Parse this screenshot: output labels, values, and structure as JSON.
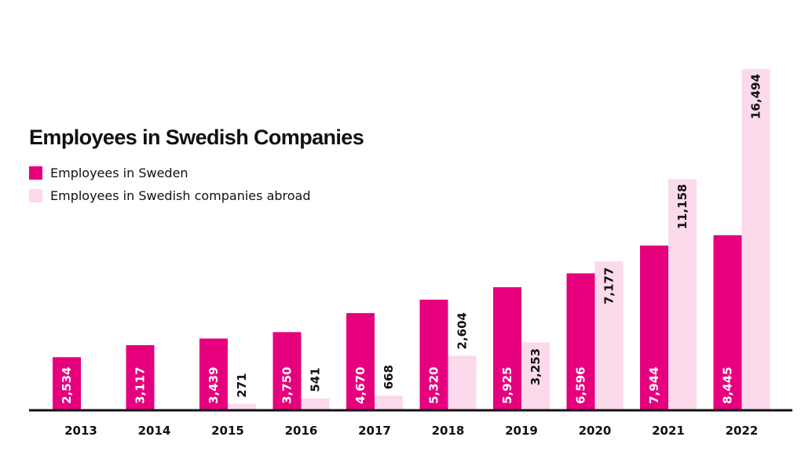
{
  "chart_data": {
    "type": "bar",
    "title": "Employees in Swedish Companies",
    "categories": [
      "2013",
      "2014",
      "2015",
      "2016",
      "2017",
      "2018",
      "2019",
      "2020",
      "2021",
      "2022"
    ],
    "series": [
      {
        "name": "Employees in Sweden",
        "color": "#e6007e",
        "values": [
          2534,
          3117,
          3439,
          3750,
          4670,
          5320,
          5925,
          6596,
          7944,
          8445
        ],
        "labels": [
          "2,534",
          "3,117",
          "3,439",
          "3,750",
          "4,670",
          "5,320",
          "5,925",
          "6,596",
          "7,944",
          "8,445"
        ]
      },
      {
        "name": "Employees in Swedish companies abroad",
        "color": "#fbdaeb",
        "values": [
          null,
          null,
          271,
          541,
          668,
          2604,
          3253,
          7177,
          11158,
          16494
        ],
        "labels": [
          "",
          "",
          "271",
          "541",
          "668",
          "2,604",
          "3,253",
          "7,177",
          "11,158",
          "16,494"
        ]
      }
    ],
    "ylim": [
      0,
      16494
    ],
    "grid": false,
    "legend_position": "top-left",
    "axis_color": "#111111"
  }
}
